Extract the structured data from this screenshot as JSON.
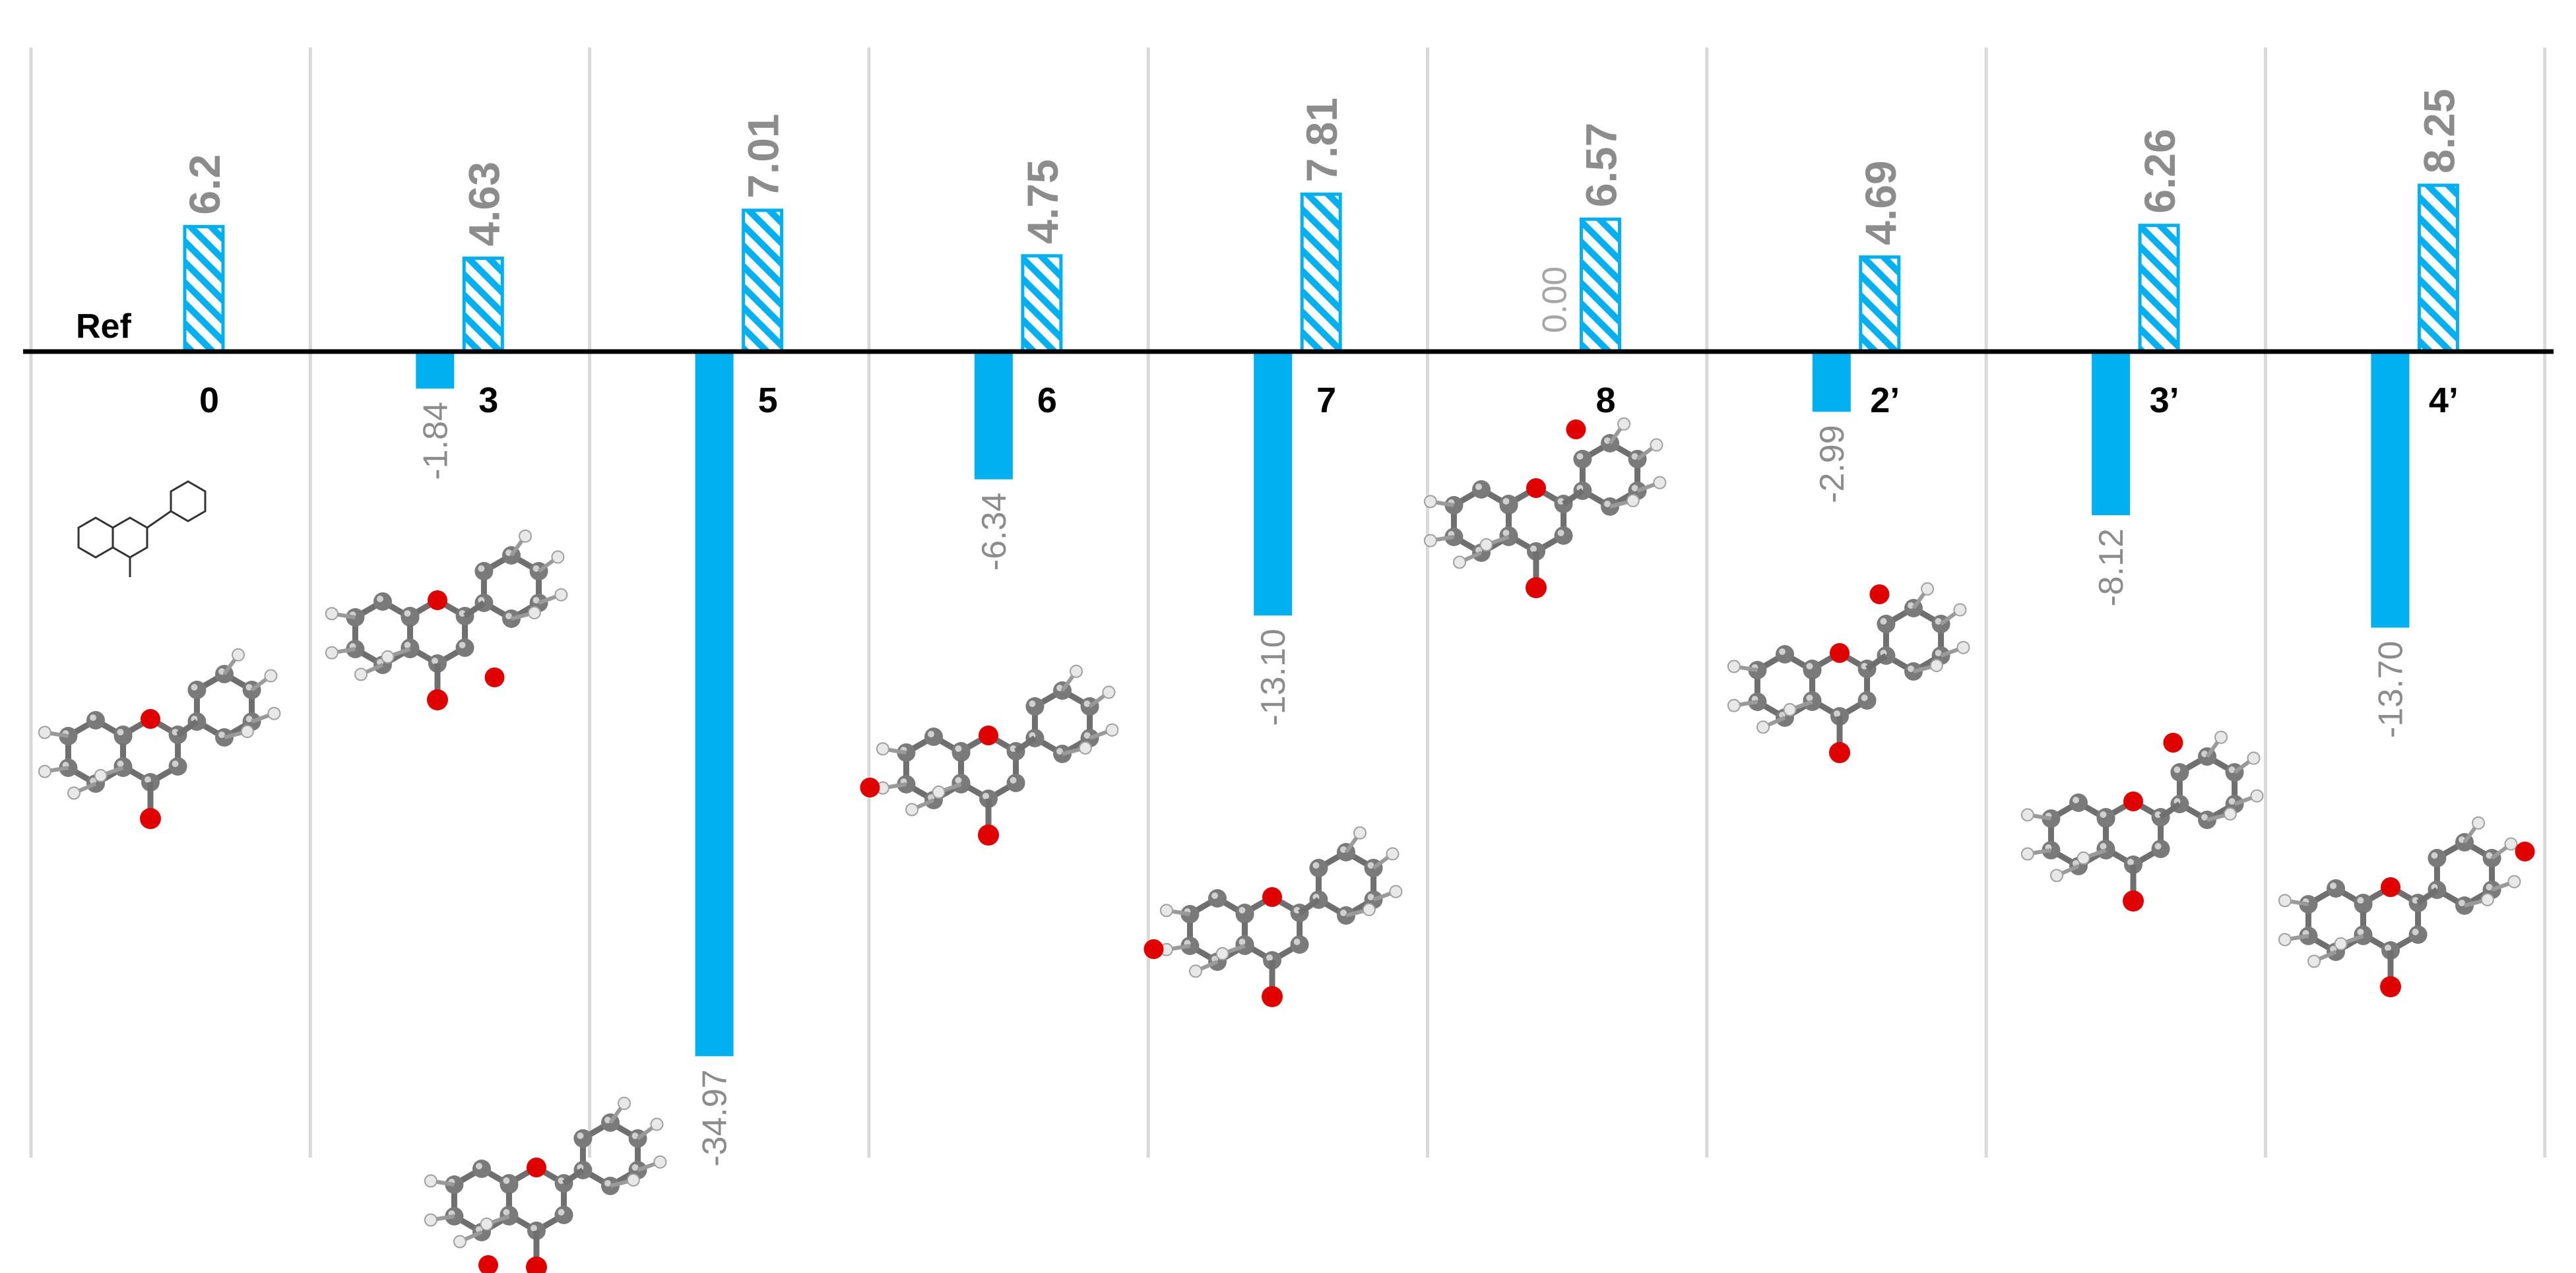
{
  "chart_data": {
    "type": "bar",
    "reference_label": "Ref",
    "categories": [
      "0",
      "3",
      "5",
      "6",
      "7",
      "8",
      "2’",
      "3’",
      "4’"
    ],
    "series": [
      {
        "values": [
          6.2,
          4.63,
          7.01,
          4.75,
          7.81,
          6.57,
          4.69,
          6.26,
          8.25
        ],
        "style": "hatched"
      },
      {
        "values": [
          null,
          -1.84,
          -34.97,
          -6.34,
          -13.1,
          0.0,
          -2.99,
          -8.12,
          -13.7
        ],
        "style": "solid"
      }
    ],
    "positive_labels": [
      "6.2",
      "4.63",
      "7.01",
      "4.75",
      "7.81",
      "6.57",
      "4.69",
      "6.26",
      "8.25"
    ],
    "negative_labels": [
      "",
      "-1.84",
      "-34.97",
      "-6.34",
      "-13.10",
      "0.00",
      "-2.99",
      "-8.12",
      "-13.70"
    ],
    "grid": "vertical separators",
    "colors": {
      "bar": "#00b0f0",
      "hatch_stroke": "#00b0f0",
      "axis": "#000000",
      "separator": "#d9d9d9",
      "label": "#8c8c8c"
    }
  },
  "molecules": [
    {
      "name": "molecule-0",
      "oh": null
    },
    {
      "name": "molecule-3",
      "oh": "3"
    },
    {
      "name": "molecule-5",
      "oh": "5"
    },
    {
      "name": "molecule-6",
      "oh": "6"
    },
    {
      "name": "molecule-7",
      "oh": "7"
    },
    {
      "name": "molecule-8",
      "oh": "8"
    },
    {
      "name": "molecule-2p",
      "oh": "2’"
    },
    {
      "name": "molecule-3p",
      "oh": "3’"
    },
    {
      "name": "molecule-4p",
      "oh": "4’"
    }
  ]
}
